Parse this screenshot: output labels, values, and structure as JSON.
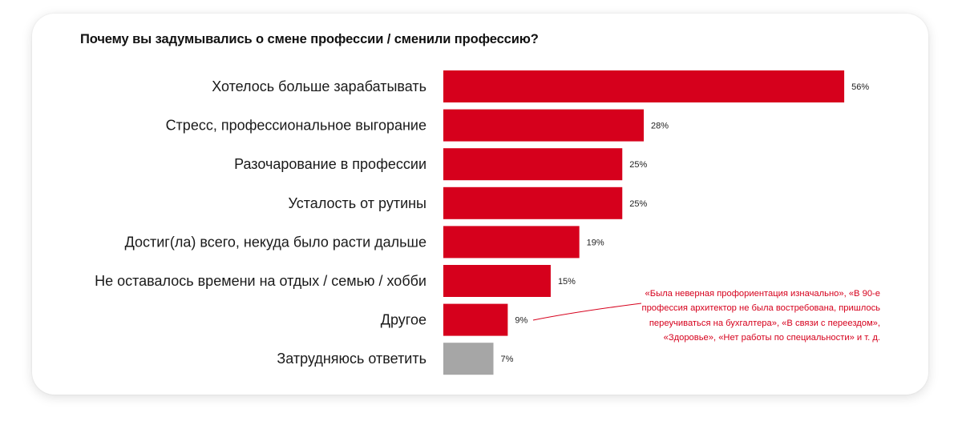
{
  "chart_data": {
    "type": "bar",
    "orientation": "horizontal",
    "title": "Почему вы задумывались о смене профессии / сменили профессию?",
    "categories": [
      "Хотелось больше зарабатывать",
      "Стресс, профессиональное выгорание",
      "Разочарование в профессии",
      "Усталость от рутины",
      "Достиг(ла) всего, некуда было расти дальше",
      "Не оставалось времени на отдых / семью / хобби",
      "Другое",
      "Затрудняюсь ответить"
    ],
    "values": [
      56,
      28,
      25,
      25,
      19,
      15,
      9,
      7
    ],
    "value_labels": [
      "56%",
      "28%",
      "25%",
      "25%",
      "19%",
      "15%",
      "9%",
      "7%"
    ],
    "unit": "%",
    "bar_color": "#d6001c",
    "highlight_colors": {
      "Затрудняюсь ответить": "#a6a6a6"
    },
    "annotation": {
      "target": "Другое",
      "color": "#d6001c",
      "text": "«Была неверная профориентация изначально», «В 90-е профессия архитектор не была востребована, пришлось переучиваться на бухгалтера», «В связи с переездом», «Здоровье», «Нет работы по специальности» и т. д."
    },
    "grid": false,
    "legend": "none"
  }
}
